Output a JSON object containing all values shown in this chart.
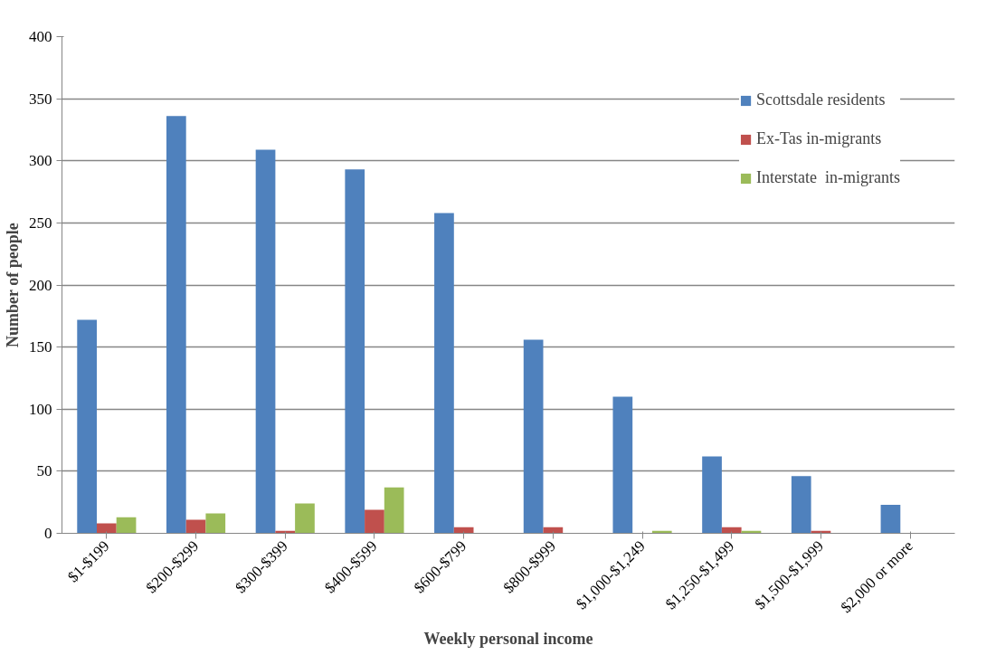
{
  "chart_data": {
    "type": "bar",
    "xlabel": "Weekly personal income",
    "ylabel": "Number of people",
    "categories": [
      "$1-$199",
      "$200-$299",
      "$300-$399",
      "$400-$599",
      "$600-$799",
      "$800-$999",
      "$1,000-$1,249",
      "$1,250-$1,499",
      "$1,500-$1,999",
      "$2,000 or more"
    ],
    "series": [
      {
        "name": "Scottsdale residents",
        "color": "#4f81bd",
        "values": [
          172,
          336,
          309,
          293,
          258,
          156,
          110,
          62,
          46,
          23
        ]
      },
      {
        "name": "Ex-Tas in-migrants",
        "color": "#c0504d",
        "values": [
          8,
          11,
          2,
          19,
          5,
          5,
          0,
          5,
          2,
          0
        ]
      },
      {
        "name": "Interstate  in-migrants",
        "color": "#9bbb59",
        "values": [
          13,
          16,
          24,
          37,
          0,
          0,
          2,
          2,
          0,
          0
        ]
      }
    ],
    "ylim": [
      0,
      400
    ],
    "yticks": [
      0,
      50,
      100,
      150,
      200,
      250,
      300,
      350,
      400
    ],
    "grid": "y",
    "legend": "top right"
  }
}
